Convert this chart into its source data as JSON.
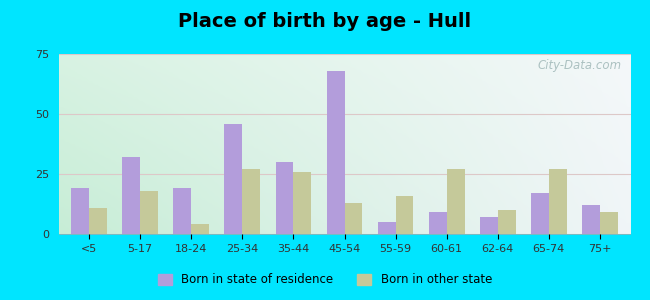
{
  "title": "Place of birth by age - Hull",
  "categories": [
    "<5",
    "5-17",
    "18-24",
    "25-34",
    "35-44",
    "45-54",
    "55-59",
    "60-61",
    "62-64",
    "65-74",
    "75+"
  ],
  "born_in_state": [
    19,
    32,
    19,
    46,
    30,
    68,
    5,
    9,
    7,
    17,
    12
  ],
  "born_other_state": [
    11,
    18,
    4,
    27,
    26,
    13,
    16,
    27,
    10,
    27,
    9
  ],
  "color_state": "#b39ddb",
  "color_other": "#c5c99a",
  "ylim": [
    0,
    75
  ],
  "yticks": [
    0,
    25,
    50,
    75
  ],
  "bar_width": 0.35,
  "background_outer": "#00e5ff",
  "legend_label_state": "Born in state of residence",
  "legend_label_other": "Born in other state",
  "title_fontsize": 14,
  "grid_color": "#ddc8c8",
  "bg_left": "#c8ecd8",
  "bg_right": "#e8f0f8"
}
